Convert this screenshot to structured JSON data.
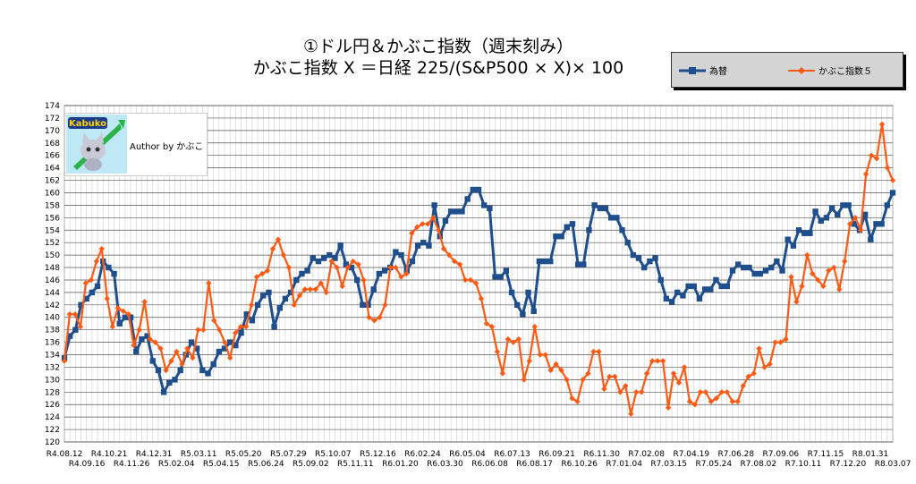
{
  "title": {
    "line1": "①ドル円＆かぶこ指数（週末刻み）",
    "line2": "かぶこ指数 X ＝日経 225/(S&P500 × X)× 100"
  },
  "legend": [
    {
      "name": "為替",
      "color": "#1f4e8c",
      "marker": "square"
    },
    {
      "name": "かぶこ指数５",
      "color": "#ff5a14",
      "marker": "diamond"
    }
  ],
  "logo": {
    "badge": "Kabuko",
    "author": "Author by かぶこ"
  },
  "chart_data": {
    "type": "line",
    "ylim": [
      120,
      174
    ],
    "yticks": [
      120,
      122,
      124,
      126,
      128,
      130,
      132,
      134,
      136,
      138,
      140,
      142,
      144,
      146,
      148,
      150,
      152,
      154,
      156,
      158,
      160,
      162,
      164,
      166,
      168,
      170,
      172,
      174
    ],
    "x_tick_labels": [
      "R4.08.12",
      "R4.09.16",
      "R4.10.21",
      "R4.11.26",
      "R4.12.31",
      "R5.02.04",
      "R5.03.11",
      "R5.04.15",
      "R5.05.20",
      "R5.06.24",
      "R5.07.29",
      "R5.09.02",
      "R5.10.07",
      "R5.11.11",
      "R5.12.16",
      "R6.01.20",
      "R6.02.24",
      "R6.03.30",
      "R6.05.04",
      "R6.06.08",
      "R6.07.13",
      "R6.08.17",
      "R6.09.21",
      "R6.10.26",
      "R6.11.30",
      "R7.01.04",
      "R7.02.08",
      "R7.03.15",
      "R7.04.19",
      "R7.05.24",
      "R7.06.28",
      "R7.08.02",
      "R7.09.06",
      "R7.10.11",
      "R7.11.15",
      "R7.12.20",
      "R8.01.31",
      "R8.03.07"
    ],
    "grid": true,
    "legend_position": "top-right",
    "series": [
      {
        "name": "為替",
        "color": "#1f4e8c",
        "values": [
          133.5,
          137,
          138,
          142,
          143,
          144,
          145,
          149,
          148,
          147,
          139,
          140,
          140,
          134.5,
          136.5,
          137,
          133,
          131.5,
          128,
          129.5,
          130,
          131.5,
          134,
          136,
          135,
          131.5,
          131,
          132.5,
          134.5,
          135,
          136,
          135.5,
          137.5,
          140.5,
          139.5,
          142,
          143.5,
          144,
          138.5,
          141.5,
          143,
          144,
          146,
          147,
          147.5,
          149.5,
          149,
          149.5,
          150,
          149.5,
          151.5,
          148.5,
          148,
          146,
          142,
          142,
          144.5,
          147,
          147.5,
          148,
          150.5,
          150,
          147.5,
          149,
          151.5,
          152,
          151.5,
          158,
          153,
          155.5,
          157,
          157,
          157,
          159,
          160.5,
          160.5,
          158,
          157.5,
          146.5,
          146.5,
          147.5,
          144,
          142,
          140.5,
          144,
          141,
          149,
          149,
          149,
          153,
          153,
          154.5,
          155,
          148.5,
          148.5,
          154,
          158,
          157.5,
          157.5,
          156,
          156,
          154,
          152,
          150,
          149.5,
          148,
          149,
          149.5,
          146,
          143,
          142.5,
          144,
          143.5,
          145,
          145,
          143,
          144.5,
          144.5,
          146,
          145,
          145,
          147.5,
          148.5,
          148,
          148,
          147,
          147,
          147.5,
          148,
          149,
          147.5,
          152.5,
          151.5,
          154,
          153.5,
          153.5,
          157,
          155.5,
          156,
          157.5,
          156.5,
          158,
          158,
          155,
          154,
          156.5,
          152.5,
          155,
          155,
          158,
          160
        ]
      },
      {
        "name": "かぶこ指数５",
        "color": "#ff5a14",
        "values": [
          133,
          140.5,
          140.5,
          138.5,
          145.5,
          146,
          149,
          151,
          143,
          138.5,
          141.5,
          141,
          140.5,
          135.5,
          138,
          142.5,
          136.5,
          136,
          135,
          131.5,
          133,
          134.5,
          132.5,
          135,
          133.5,
          138,
          138,
          145.5,
          139.5,
          138,
          136,
          133.5,
          137.5,
          138.5,
          138.5,
          142,
          146.5,
          147,
          147.5,
          151,
          152.5,
          150,
          148,
          142,
          143.5,
          144.5,
          144.5,
          144.5,
          145.5,
          144,
          149,
          148,
          145,
          148,
          149,
          148.5,
          146,
          140,
          139.5,
          140,
          142,
          148,
          148,
          146.5,
          147,
          153.5,
          154.5,
          155,
          155,
          156,
          154,
          151,
          150,
          149,
          148.5,
          146,
          146,
          145.5,
          143,
          139,
          138.5,
          134.5,
          131,
          136.5,
          136,
          136.5,
          130,
          133,
          138.5,
          134,
          134,
          131.5,
          132.5,
          131.5,
          130,
          127,
          126.5,
          130,
          131,
          134.5,
          134.5,
          128.5,
          130.5,
          130.5,
          128,
          129,
          124.5,
          128,
          128,
          131,
          133,
          133,
          133,
          125.5,
          131,
          129.5,
          132,
          126.5,
          126,
          128,
          128,
          126.5,
          127,
          128,
          128,
          126.5,
          126.5,
          129,
          130.5,
          131,
          135,
          132,
          132.5,
          136,
          136,
          136.5,
          146.5,
          142.5,
          145,
          150,
          147,
          146,
          145,
          147.5,
          148,
          144.5,
          149,
          155,
          156,
          154,
          163,
          166,
          165.5,
          171,
          164,
          162
        ]
      }
    ]
  }
}
